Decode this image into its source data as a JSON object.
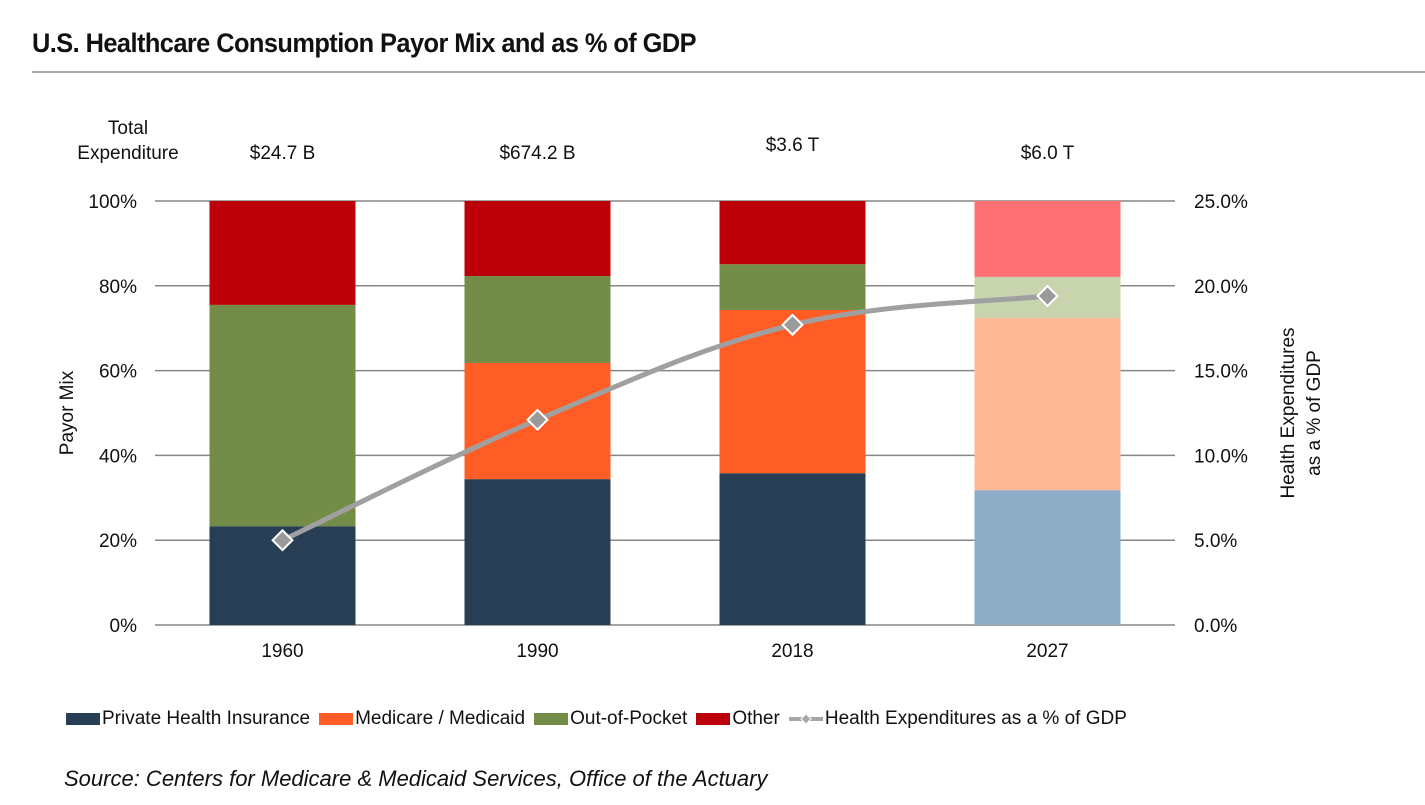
{
  "title": "U.S. Healthcare Consumption Payor Mix and as % of GDP",
  "source": "Source: Centers for Medicare & Medicaid Services, Office of the Actuary",
  "chart_data": {
    "type": "bar",
    "subtype": "stacked-100-with-line",
    "title": "U.S. Healthcare Consumption Payor Mix and as % of GDP",
    "categories": [
      "1960",
      "1990",
      "2018",
      "2027"
    ],
    "total_expenditure_label": [
      "Total",
      "Expenditure"
    ],
    "total_expenditure": [
      "$24.7 B",
      "$674.2 B",
      "$3.6 T",
      "$6.0 T"
    ],
    "series": [
      {
        "name": "Private Health Insurance",
        "type": "bar",
        "axis": "left",
        "color": "#283e55",
        "projected_color": "#8eacc5",
        "values": [
          23.3,
          34.4,
          35.8,
          31.8
        ]
      },
      {
        "name": "Medicare / Medicaid",
        "type": "bar",
        "axis": "left",
        "color": "#ff5c26",
        "projected_color": "#ffb996",
        "values": [
          0.0,
          27.4,
          38.5,
          40.6
        ]
      },
      {
        "name": "Out-of-Pocket",
        "type": "bar",
        "axis": "left",
        "color": "#738c48",
        "projected_color": "#c7d4ae",
        "values": [
          52.2,
          20.5,
          10.8,
          9.7
        ]
      },
      {
        "name": "Other",
        "type": "bar",
        "axis": "left",
        "color": "#bb000a",
        "projected_color": "#ff7175",
        "values": [
          24.5,
          17.7,
          14.9,
          17.9
        ]
      },
      {
        "name": "Health Expenditures as a % of GDP",
        "type": "line",
        "axis": "right",
        "color": "#a0a0a0",
        "values": [
          5.0,
          12.1,
          17.7,
          19.4
        ]
      }
    ],
    "projected_categories": [
      "2027"
    ],
    "ylabel": "Payor Mix",
    "ylim": [
      0,
      100
    ],
    "yticks": [
      "0%",
      "20%",
      "40%",
      "60%",
      "80%",
      "100%"
    ],
    "y2label": [
      "Health Expenditures",
      "as a % of GDP"
    ],
    "y2lim": [
      0,
      25
    ],
    "y2ticks": [
      "0.0%",
      "5.0%",
      "10.0%",
      "15.0%",
      "20.0%",
      "25.0%"
    ],
    "grid": true,
    "legend": "bottom"
  }
}
